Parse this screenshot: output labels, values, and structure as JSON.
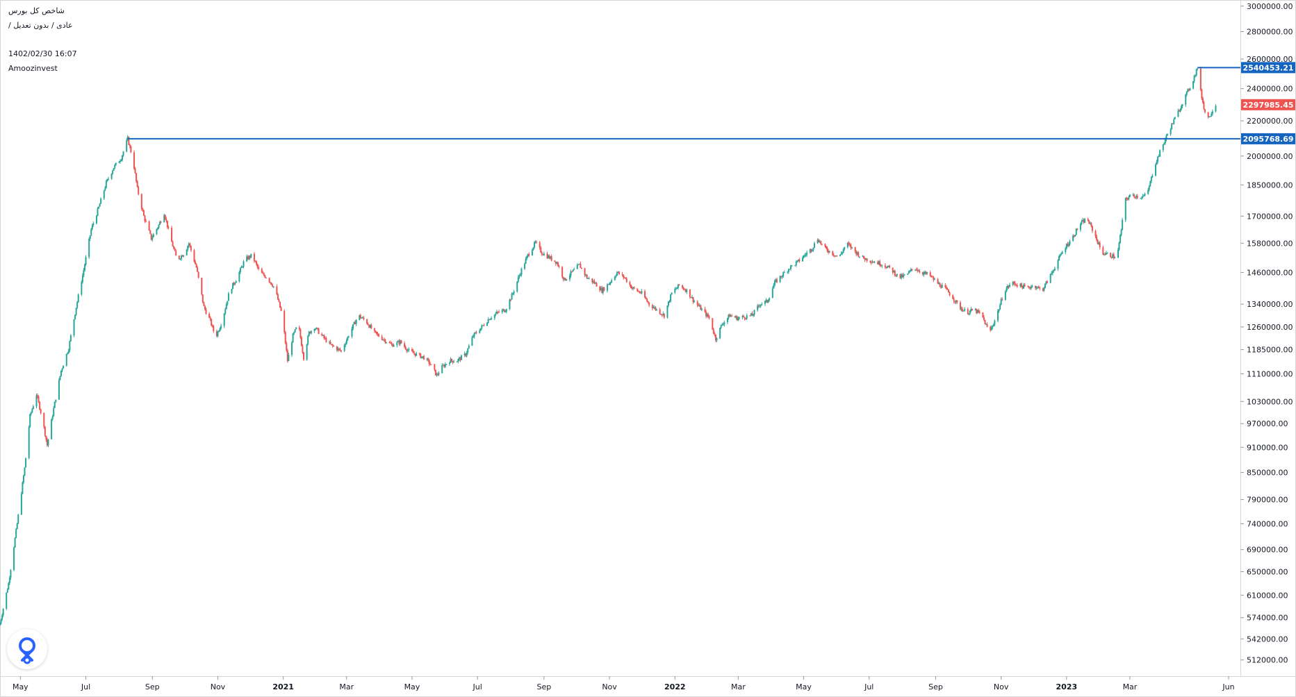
{
  "header": {
    "title": "شاخص کل بورس",
    "subtitle": "عادی / بدون تعدیل /",
    "datetime": "1402/02/30 16:07",
    "brand": "Amoozinvest"
  },
  "colors": {
    "up": "#26a69a",
    "down": "#ef5350",
    "level_line": "#1565c0",
    "last_price_tag": "#ef5350",
    "logo": "#2962ff"
  },
  "icons": {
    "logo": "location-pin-icon"
  },
  "chart_data": {
    "type": "candlestick",
    "y_scale": "log",
    "ylim": [
      490000,
      3050000
    ],
    "y_ticks": [
      "3000000.00",
      "2800000.00",
      "2600000.00",
      "2400000.00",
      "2200000.00",
      "2000000.00",
      "1850000.00",
      "1700000.00",
      "1580000.00",
      "1460000.00",
      "1340000.00",
      "1260000.00",
      "1185000.00",
      "1110000.00",
      "1030000.00",
      "970000.00",
      "910000.00",
      "850000.00",
      "790000.00",
      "740000.00",
      "690000.00",
      "650000.00",
      "610000.00",
      "574000.00",
      "542000.00",
      "512000.00"
    ],
    "x_range": [
      "2020-04-12",
      "2023-06-12"
    ],
    "x_ticks": [
      {
        "date": "2020-05-01",
        "label": "May"
      },
      {
        "date": "2020-07-01",
        "label": "Jul"
      },
      {
        "date": "2020-09-01",
        "label": "Sep"
      },
      {
        "date": "2020-11-01",
        "label": "Nov"
      },
      {
        "date": "2021-01-01",
        "label": "2021",
        "bold": true
      },
      {
        "date": "2021-03-01",
        "label": "Mar"
      },
      {
        "date": "2021-05-01",
        "label": "May"
      },
      {
        "date": "2021-07-01",
        "label": "Jul"
      },
      {
        "date": "2021-09-01",
        "label": "Sep"
      },
      {
        "date": "2021-11-01",
        "label": "Nov"
      },
      {
        "date": "2022-01-01",
        "label": "2022",
        "bold": true
      },
      {
        "date": "2022-03-01",
        "label": "Mar"
      },
      {
        "date": "2022-05-01",
        "label": "May"
      },
      {
        "date": "2022-07-01",
        "label": "Jul"
      },
      {
        "date": "2022-09-01",
        "label": "Sep"
      },
      {
        "date": "2022-11-01",
        "label": "Nov"
      },
      {
        "date": "2023-01-01",
        "label": "2023",
        "bold": true
      },
      {
        "date": "2023-03-01",
        "label": "Mar"
      },
      {
        "date": "2023-06-01",
        "label": "Jun"
      }
    ],
    "path_points": [
      [
        "2020-04-12",
        565000
      ],
      [
        "2020-04-20",
        630000
      ],
      [
        "2020-04-28",
        740000
      ],
      [
        "2020-05-05",
        860000
      ],
      [
        "2020-05-10",
        990000
      ],
      [
        "2020-05-16",
        1050000
      ],
      [
        "2020-05-21",
        990000
      ],
      [
        "2020-05-26",
        915000
      ],
      [
        "2020-06-01",
        1010000
      ],
      [
        "2020-06-08",
        1120000
      ],
      [
        "2020-06-15",
        1190000
      ],
      [
        "2020-06-22",
        1330000
      ],
      [
        "2020-06-29",
        1470000
      ],
      [
        "2020-07-06",
        1640000
      ],
      [
        "2020-07-13",
        1740000
      ],
      [
        "2020-07-20",
        1860000
      ],
      [
        "2020-07-27",
        1940000
      ],
      [
        "2020-08-03",
        1990000
      ],
      [
        "2020-08-09",
        2095768
      ],
      [
        "2020-08-14",
        1980000
      ],
      [
        "2020-08-18",
        1830000
      ],
      [
        "2020-08-24",
        1700000
      ],
      [
        "2020-08-31",
        1600000
      ],
      [
        "2020-09-07",
        1660000
      ],
      [
        "2020-09-12",
        1715000
      ],
      [
        "2020-09-18",
        1600000
      ],
      [
        "2020-09-24",
        1510000
      ],
      [
        "2020-10-01",
        1540000
      ],
      [
        "2020-10-05",
        1580000
      ],
      [
        "2020-10-12",
        1480000
      ],
      [
        "2020-10-19",
        1330000
      ],
      [
        "2020-10-25",
        1280000
      ],
      [
        "2020-10-30",
        1225000
      ],
      [
        "2020-11-05",
        1280000
      ],
      [
        "2020-11-12",
        1390000
      ],
      [
        "2020-11-19",
        1440000
      ],
      [
        "2020-11-26",
        1510000
      ],
      [
        "2020-12-03",
        1530000
      ],
      [
        "2020-12-10",
        1460000
      ],
      [
        "2020-12-17",
        1440000
      ],
      [
        "2020-12-24",
        1400000
      ],
      [
        "2020-12-31",
        1300000
      ],
      [
        "2021-01-05",
        1150000
      ],
      [
        "2021-01-10",
        1230000
      ],
      [
        "2021-01-15",
        1270000
      ],
      [
        "2021-01-20",
        1160000
      ],
      [
        "2021-01-25",
        1240000
      ],
      [
        "2021-01-30",
        1260000
      ],
      [
        "2021-02-06",
        1230000
      ],
      [
        "2021-02-14",
        1200000
      ],
      [
        "2021-02-24",
        1180000
      ],
      [
        "2021-03-04",
        1240000
      ],
      [
        "2021-03-12",
        1300000
      ],
      [
        "2021-03-19",
        1280000
      ],
      [
        "2021-03-27",
        1240000
      ],
      [
        "2021-04-04",
        1220000
      ],
      [
        "2021-04-12",
        1200000
      ],
      [
        "2021-04-20",
        1210000
      ],
      [
        "2021-04-28",
        1180000
      ],
      [
        "2021-05-05",
        1170000
      ],
      [
        "2021-05-12",
        1160000
      ],
      [
        "2021-05-18",
        1140000
      ],
      [
        "2021-05-24",
        1105000
      ],
      [
        "2021-05-29",
        1130000
      ],
      [
        "2021-06-05",
        1150000
      ],
      [
        "2021-06-12",
        1150000
      ],
      [
        "2021-06-20",
        1170000
      ],
      [
        "2021-06-27",
        1230000
      ],
      [
        "2021-07-05",
        1260000
      ],
      [
        "2021-07-12",
        1290000
      ],
      [
        "2021-07-20",
        1310000
      ],
      [
        "2021-07-27",
        1320000
      ],
      [
        "2021-08-03",
        1380000
      ],
      [
        "2021-08-10",
        1460000
      ],
      [
        "2021-08-17",
        1530000
      ],
      [
        "2021-08-24",
        1582000
      ],
      [
        "2021-08-30",
        1540000
      ],
      [
        "2021-09-06",
        1520000
      ],
      [
        "2021-09-13",
        1500000
      ],
      [
        "2021-09-20",
        1430000
      ],
      [
        "2021-09-27",
        1460000
      ],
      [
        "2021-10-04",
        1490000
      ],
      [
        "2021-10-11",
        1440000
      ],
      [
        "2021-10-18",
        1420000
      ],
      [
        "2021-10-25",
        1390000
      ],
      [
        "2021-11-01",
        1420000
      ],
      [
        "2021-11-08",
        1460000
      ],
      [
        "2021-11-15",
        1440000
      ],
      [
        "2021-11-22",
        1400000
      ],
      [
        "2021-12-01",
        1380000
      ],
      [
        "2021-12-08",
        1340000
      ],
      [
        "2021-12-15",
        1320000
      ],
      [
        "2021-12-22",
        1300000
      ],
      [
        "2021-12-29",
        1380000
      ],
      [
        "2022-01-05",
        1410000
      ],
      [
        "2022-01-12",
        1390000
      ],
      [
        "2022-01-19",
        1350000
      ],
      [
        "2022-01-26",
        1320000
      ],
      [
        "2022-02-02",
        1290000
      ],
      [
        "2022-02-08",
        1220000
      ],
      [
        "2022-02-14",
        1270000
      ],
      [
        "2022-02-21",
        1300000
      ],
      [
        "2022-02-28",
        1290000
      ],
      [
        "2022-03-07",
        1295000
      ],
      [
        "2022-03-14",
        1300000
      ],
      [
        "2022-03-21",
        1340000
      ],
      [
        "2022-03-28",
        1350000
      ],
      [
        "2022-04-04",
        1420000
      ],
      [
        "2022-04-11",
        1450000
      ],
      [
        "2022-04-18",
        1480000
      ],
      [
        "2022-04-25",
        1500000
      ],
      [
        "2022-05-02",
        1530000
      ],
      [
        "2022-05-09",
        1560000
      ],
      [
        "2022-05-14",
        1600000
      ],
      [
        "2022-05-20",
        1560000
      ],
      [
        "2022-05-27",
        1540000
      ],
      [
        "2022-06-03",
        1520000
      ],
      [
        "2022-06-10",
        1580000
      ],
      [
        "2022-06-17",
        1550000
      ],
      [
        "2022-06-24",
        1520000
      ],
      [
        "2022-07-01",
        1510000
      ],
      [
        "2022-07-08",
        1500000
      ],
      [
        "2022-07-15",
        1490000
      ],
      [
        "2022-07-22",
        1470000
      ],
      [
        "2022-07-29",
        1440000
      ],
      [
        "2022-08-05",
        1450000
      ],
      [
        "2022-08-12",
        1480000
      ],
      [
        "2022-08-19",
        1460000
      ],
      [
        "2022-08-26",
        1450000
      ],
      [
        "2022-09-02",
        1420000
      ],
      [
        "2022-09-09",
        1400000
      ],
      [
        "2022-09-16",
        1370000
      ],
      [
        "2022-09-23",
        1330000
      ],
      [
        "2022-09-30",
        1310000
      ],
      [
        "2022-10-07",
        1320000
      ],
      [
        "2022-10-14",
        1300000
      ],
      [
        "2022-10-21",
        1240000
      ],
      [
        "2022-10-28",
        1300000
      ],
      [
        "2022-11-04",
        1390000
      ],
      [
        "2022-11-11",
        1420000
      ],
      [
        "2022-11-18",
        1410000
      ],
      [
        "2022-11-25",
        1400000
      ],
      [
        "2022-12-02",
        1410000
      ],
      [
        "2022-12-09",
        1390000
      ],
      [
        "2022-12-16",
        1440000
      ],
      [
        "2022-12-23",
        1500000
      ],
      [
        "2022-12-30",
        1560000
      ],
      [
        "2023-01-06",
        1600000
      ],
      [
        "2023-01-13",
        1660000
      ],
      [
        "2023-01-20",
        1690000
      ],
      [
        "2023-01-27",
        1620000
      ],
      [
        "2023-02-03",
        1540000
      ],
      [
        "2023-02-10",
        1530000
      ],
      [
        "2023-02-17",
        1520000
      ],
      [
        "2023-02-21",
        1640000
      ],
      [
        "2023-02-25",
        1780000
      ],
      [
        "2023-03-03",
        1800000
      ],
      [
        "2023-03-10",
        1790000
      ],
      [
        "2023-03-17",
        1800000
      ],
      [
        "2023-03-24",
        1950000
      ],
      [
        "2023-03-31",
        2050000
      ],
      [
        "2023-04-07",
        2150000
      ],
      [
        "2023-04-14",
        2240000
      ],
      [
        "2023-04-21",
        2340000
      ],
      [
        "2023-04-28",
        2440000
      ],
      [
        "2023-05-03",
        2540453
      ],
      [
        "2023-05-06",
        2380000
      ],
      [
        "2023-05-10",
        2250000
      ],
      [
        "2023-05-14",
        2220000
      ],
      [
        "2023-05-17",
        2270000
      ],
      [
        "2023-05-20",
        2297985
      ]
    ],
    "horizontal_levels": [
      {
        "from_date": "2020-08-09",
        "value": 2095768.69,
        "label": "2095768.69"
      },
      {
        "from_date": "2023-05-03",
        "value": 2540453.21,
        "label": "2540453.21"
      }
    ],
    "last_price": {
      "value": 2297985.45,
      "label": "2297985.45"
    }
  }
}
